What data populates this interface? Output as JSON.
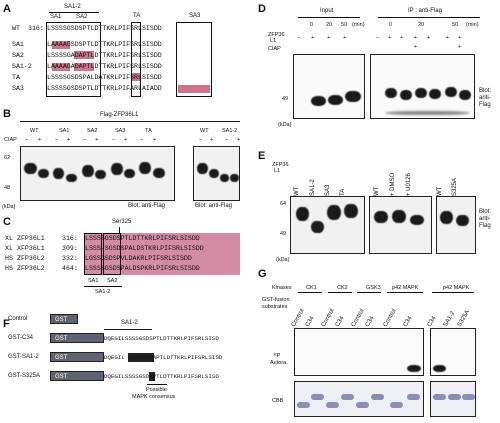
{
  "panels": {
    "A": "A",
    "B": "B",
    "C": "C",
    "D": "D",
    "E": "E",
    "F": "F",
    "G": "G"
  },
  "panelA": {
    "group_labels": {
      "sa12": "SA1-2",
      "sa1": "SA1",
      "sa2": "SA2",
      "ta": "TA",
      "sa3": "SA3"
    },
    "rows": [
      {
        "name": "WT",
        "pos": "316:",
        "seq": "LSSSSGSDSPTLDTTKRLPIFSRLSISDD"
      },
      {
        "name": "SA1",
        "pos": "",
        "seq": "LAAAAGSDSPTLDTTKRLPIFSRLSISDD"
      },
      {
        "name": "SA2",
        "pos": "",
        "seq": "LSSSSGADAPTLDTTKRLPIFSRLSISDD"
      },
      {
        "name": "SA1-2",
        "pos": "",
        "seq": "LAAAAGADAPTLDTTKRLPIFSRLSISDD"
      },
      {
        "name": "TA",
        "pos": "",
        "seq": "LSSSSGSDSPALDATKRLPIFSRLSISDD"
      },
      {
        "name": "SA3",
        "pos": "",
        "seq": "LSSSSGSDSPTLDTTKRLPIFARLAIADD"
      }
    ]
  },
  "panelB": {
    "title": "Flag-ZFP36L1",
    "ciap": "CIAP",
    "lanes1": [
      "WT",
      "SA1",
      "SA2",
      "SA3",
      "TA"
    ],
    "lanes2": [
      "WT",
      "SA1-2"
    ],
    "signs": [
      "−",
      "+"
    ],
    "mw": [
      "62",
      "48"
    ],
    "kda": "(kDa)",
    "blot": "Blot: anti-Flag"
  },
  "panelC": {
    "ser": "Ser325",
    "rows": [
      {
        "sp": "XL",
        "name": "ZFP36L1",
        "pos": "316:",
        "seq": "LSSSSGSDSPTLDTTKRLPIFSRLSISDD"
      },
      {
        "sp": "XL",
        "name": "XFP36L1",
        "pos": "309:",
        "seq": "LSSS-SGSDSPALDSTKRLPIFSRLSISDD"
      },
      {
        "sp": "HS",
        "name": "ZFP36L2",
        "pos": "332:",
        "seq": "LGSSGSDSPVLDAKRLPIFSRLSISDD"
      },
      {
        "sp": "HS",
        "name": "ZFP36L2",
        "pos": "464:",
        "seq": "LSSSSGSDSPALDSPKRLPIFSRLSISDD"
      }
    ],
    "sa1": "SA1",
    "sa2": "SA2",
    "sa12": "SA1-2"
  },
  "panelD": {
    "input": "Input",
    "ip": "IP : anti-Flag",
    "time_label": "(min)",
    "times": [
      "0",
      "20",
      "50"
    ],
    "zfp": "ZFP36",
    "l1": "L1",
    "ciap": "CIAP",
    "signs": [
      "−",
      "+",
      "+",
      "+",
      "+",
      "+",
      "+"
    ],
    "mw": "49",
    "kda": "(kDa)",
    "blot": "Blot:",
    "blot2": "anti-",
    "blot3": "Flag"
  },
  "panelE": {
    "zfp": "ZFP36",
    "l1": "L1",
    "lanes1": [
      "WT",
      "SA1-2",
      "SA3",
      "TA"
    ],
    "lanes2": [
      "WT",
      "+ DMSO",
      "+ U0126"
    ],
    "lanes3": [
      "WT",
      "S325A"
    ],
    "mw": [
      "64",
      "49"
    ],
    "kda": "(kDa)",
    "blot": "Blot:",
    "blot2": "anti-",
    "blot3": "Flag"
  },
  "panelF": {
    "rows": [
      {
        "name": "Control",
        "gst": "GST",
        "seq": ""
      },
      {
        "name": "GST-C34",
        "gst": "GST",
        "seq": "DQEGILSSSSGSDSPTLDTTKRLPIFSRLSISD"
      },
      {
        "name": "GST-SA1-2",
        "gst": "GST",
        "seq": "DQEGIL AAAAGADAPTLDTTKRLPIFSRLSISD"
      },
      {
        "name": "GST-S325A",
        "gst": "GST",
        "seq": "DQEGILSSSSGSDAPTLDTTKRLPIFSRLSISD"
      }
    ],
    "sa12": "SA1-2",
    "note1": "Possible",
    "note2": "MAPK consensus"
  },
  "panelG": {
    "kinases": "Kinases",
    "kinase_names": [
      "CK1",
      "CK2",
      "GSK3",
      "p42 MAPK",
      "p42 MAPK"
    ],
    "gst_label1": "GST-fusion",
    "gst_label2": "substrates",
    "subs": [
      "Control",
      "C34",
      "Control",
      "C34",
      "Control",
      "C34",
      "Control",
      "C34",
      "C34",
      "SA1-2",
      "S325A"
    ],
    "autora": "Autora.",
    "p32": "³²P",
    "cbb": "CBB"
  }
}
